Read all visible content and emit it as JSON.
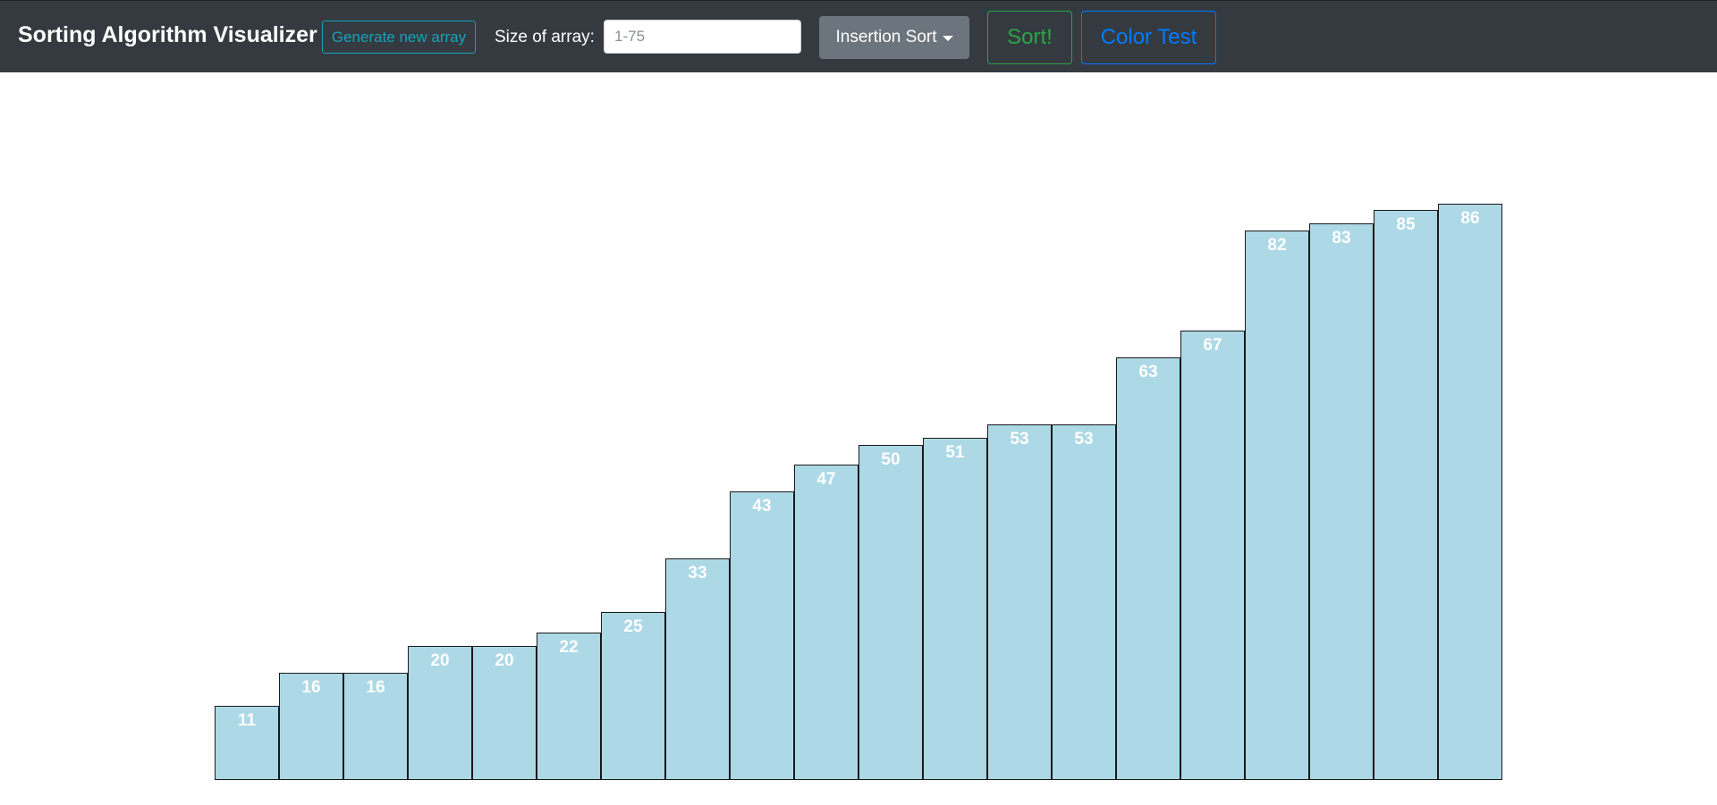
{
  "navbar": {
    "brand": "Sorting Algorithm Visualizer",
    "generate_label": "Generate new array",
    "size_label": "Size of array:",
    "size_input": {
      "placeholder": "1-75",
      "value": ""
    },
    "algorithm_selected": "Insertion Sort",
    "sort_label": "Sort!",
    "color_test_label": "Color Test"
  },
  "colors": {
    "navbar_bg": "#343a40",
    "bar_fill": "#add8e6",
    "bar_border": "#1a1a1a",
    "generate_accent": "#17a2b8",
    "sort_accent": "#28a745",
    "color_test_accent": "#007bff",
    "dropdown_bg": "#6c757d"
  },
  "chart_data": {
    "type": "bar",
    "values": [
      11,
      16,
      16,
      20,
      20,
      22,
      25,
      33,
      43,
      47,
      50,
      51,
      53,
      53,
      63,
      67,
      82,
      83,
      85,
      86
    ]
  }
}
